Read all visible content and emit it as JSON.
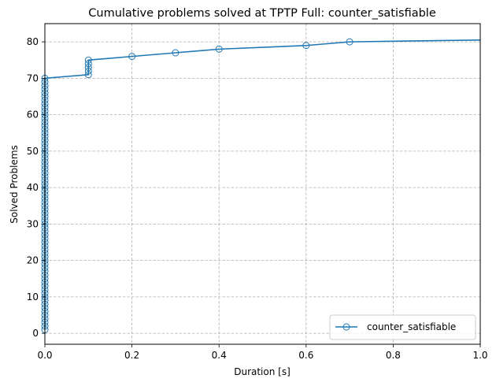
{
  "chart_data": {
    "type": "line",
    "title": "Cumulative problems solved at TPTP Full: counter_satisfiable",
    "xlabel": "Duration [s]",
    "ylabel": "Solved Problems",
    "xlim": [
      0,
      1.0
    ],
    "ylim": [
      -3,
      85
    ],
    "xticks": [
      0,
      0.2,
      0.4,
      0.6,
      0.8,
      1.0
    ],
    "xtick_labels": [
      "0.0",
      "0.2",
      "0.4",
      "0.6",
      "0.8",
      "1.0"
    ],
    "yticks": [
      0,
      10,
      20,
      30,
      40,
      50,
      60,
      70,
      80
    ],
    "ytick_labels": [
      "0",
      "10",
      "20",
      "30",
      "40",
      "50",
      "60",
      "70",
      "80"
    ],
    "grid": true,
    "legend_position": "lower-right",
    "series": [
      {
        "name": "counter_satisfiable",
        "color": "#1f77b4",
        "marker": "open-circle",
        "x": [
          0,
          0,
          0,
          0,
          0,
          0,
          0,
          0,
          0,
          0,
          0,
          0,
          0,
          0,
          0,
          0,
          0,
          0,
          0,
          0,
          0,
          0,
          0,
          0,
          0,
          0,
          0,
          0,
          0,
          0,
          0,
          0,
          0,
          0,
          0,
          0,
          0,
          0,
          0,
          0,
          0,
          0,
          0,
          0,
          0,
          0,
          0,
          0,
          0,
          0,
          0,
          0,
          0,
          0,
          0,
          0,
          0,
          0,
          0,
          0,
          0,
          0,
          0,
          0,
          0,
          0,
          0,
          0,
          0,
          0,
          0.1,
          0.1,
          0.1,
          0.1,
          0.1,
          0.2,
          0.3,
          0.4,
          0.6,
          0.7
        ],
        "y": [
          1,
          2,
          3,
          4,
          5,
          6,
          7,
          8,
          9,
          10,
          11,
          12,
          13,
          14,
          15,
          16,
          17,
          18,
          19,
          20,
          21,
          22,
          23,
          24,
          25,
          26,
          27,
          28,
          29,
          30,
          31,
          32,
          33,
          34,
          35,
          36,
          37,
          38,
          39,
          40,
          41,
          42,
          43,
          44,
          45,
          46,
          47,
          48,
          49,
          50,
          51,
          52,
          53,
          54,
          55,
          56,
          57,
          58,
          59,
          60,
          61,
          62,
          63,
          64,
          65,
          66,
          67,
          68,
          69,
          70,
          71,
          72,
          73,
          74,
          75,
          76,
          77,
          78,
          79,
          80
        ],
        "line_end": [
          1.0,
          80.5
        ]
      }
    ]
  }
}
